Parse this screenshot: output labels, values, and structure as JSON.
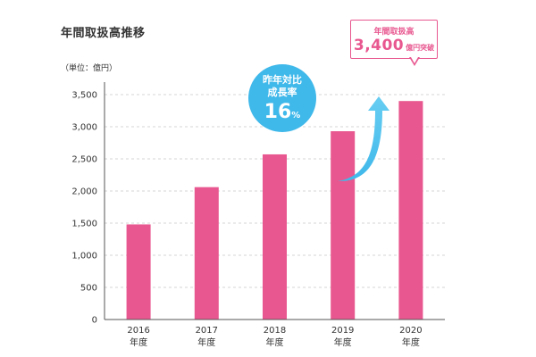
{
  "chart_data": {
    "type": "bar",
    "title": "年間取扱高推移",
    "unit_label": "（単位：億円）",
    "categories": [
      "2016",
      "2017",
      "2018",
      "2019",
      "2020"
    ],
    "category_suffix": "年度",
    "values": [
      1480,
      2060,
      2570,
      2930,
      3400
    ],
    "ylim": [
      0,
      3500
    ],
    "yticks": [
      0,
      500,
      1000,
      1500,
      2000,
      2500,
      3000,
      3500
    ],
    "ytick_labels": [
      "0",
      "500",
      "1,000",
      "1,500",
      "2,000",
      "2,500",
      "3,000",
      "3,500"
    ],
    "grid": true,
    "bar_color": "#e8578f"
  },
  "callout": {
    "label": "年間取扱高",
    "value": "3,400",
    "unit": "億円突破",
    "color": "#e8578f"
  },
  "growth_badge": {
    "label_line1": "昨年対比",
    "label_line2": "成長率",
    "value": "16",
    "unit": "%",
    "color": "#3fb8ea"
  }
}
